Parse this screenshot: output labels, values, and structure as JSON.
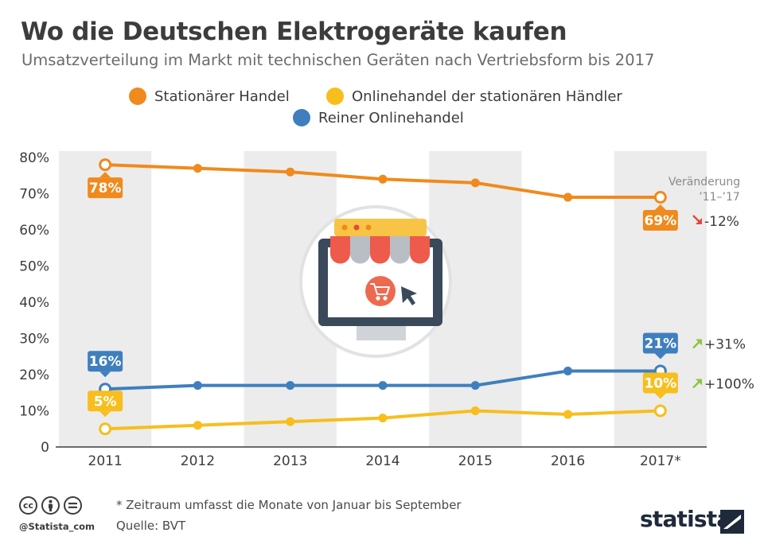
{
  "title": "Wo die Deutschen Elektrogeräte kaufen",
  "subtitle": "Umsatzverteilung im Markt mit technischen Geräten nach Vertriebsform bis 2017",
  "legend": [
    {
      "label": "Stationärer Handel",
      "color": "#f08a1c"
    },
    {
      "label": "Onlinehandel der stationären Händler",
      "color": "#f7be1e"
    },
    {
      "label": "Reiner Onlinehandel",
      "color": "#3f7fbe"
    }
  ],
  "change_header": [
    "Veränderung",
    "’11–’17"
  ],
  "chart_data": {
    "type": "line",
    "categories": [
      "2011",
      "2012",
      "2013",
      "2014",
      "2015",
      "2016",
      "2017*"
    ],
    "ylim": [
      0,
      80
    ],
    "yticks": [
      "0",
      "10%",
      "20%",
      "30%",
      "40%",
      "50%",
      "60%",
      "70%",
      "80%"
    ],
    "ytick_values": [
      0,
      10,
      20,
      30,
      40,
      50,
      60,
      70,
      80
    ],
    "grid": false,
    "legend_position": "top",
    "series": [
      {
        "name": "Stationärer Handel",
        "color": "#f08a1c",
        "values": [
          78,
          77,
          76,
          74,
          73,
          69,
          69
        ],
        "start_label": "78%",
        "end_label": "69%",
        "change": "-12%",
        "change_dir": "down"
      },
      {
        "name": "Onlinehandel der stationären Händler",
        "color": "#f7be1e",
        "values": [
          5,
          6,
          7,
          8,
          10,
          9,
          10
        ],
        "start_label": "5%",
        "end_label": "10%",
        "change": "+100%",
        "change_dir": "up"
      },
      {
        "name": "Reiner Onlinehandel",
        "color": "#3f7fbe",
        "values": [
          16,
          17,
          17,
          17,
          17,
          21,
          21
        ],
        "start_label": "16%",
        "end_label": "21%",
        "change": "+31%",
        "change_dir": "up"
      }
    ]
  },
  "footer": {
    "note": "* Zeitraum umfasst die Monate von Januar bis September",
    "source": "Quelle: BVT",
    "handle": "@Statista_com",
    "brand": "statista",
    "cc_icons": [
      "cc-icon",
      "by-icon",
      "nd-icon"
    ]
  }
}
